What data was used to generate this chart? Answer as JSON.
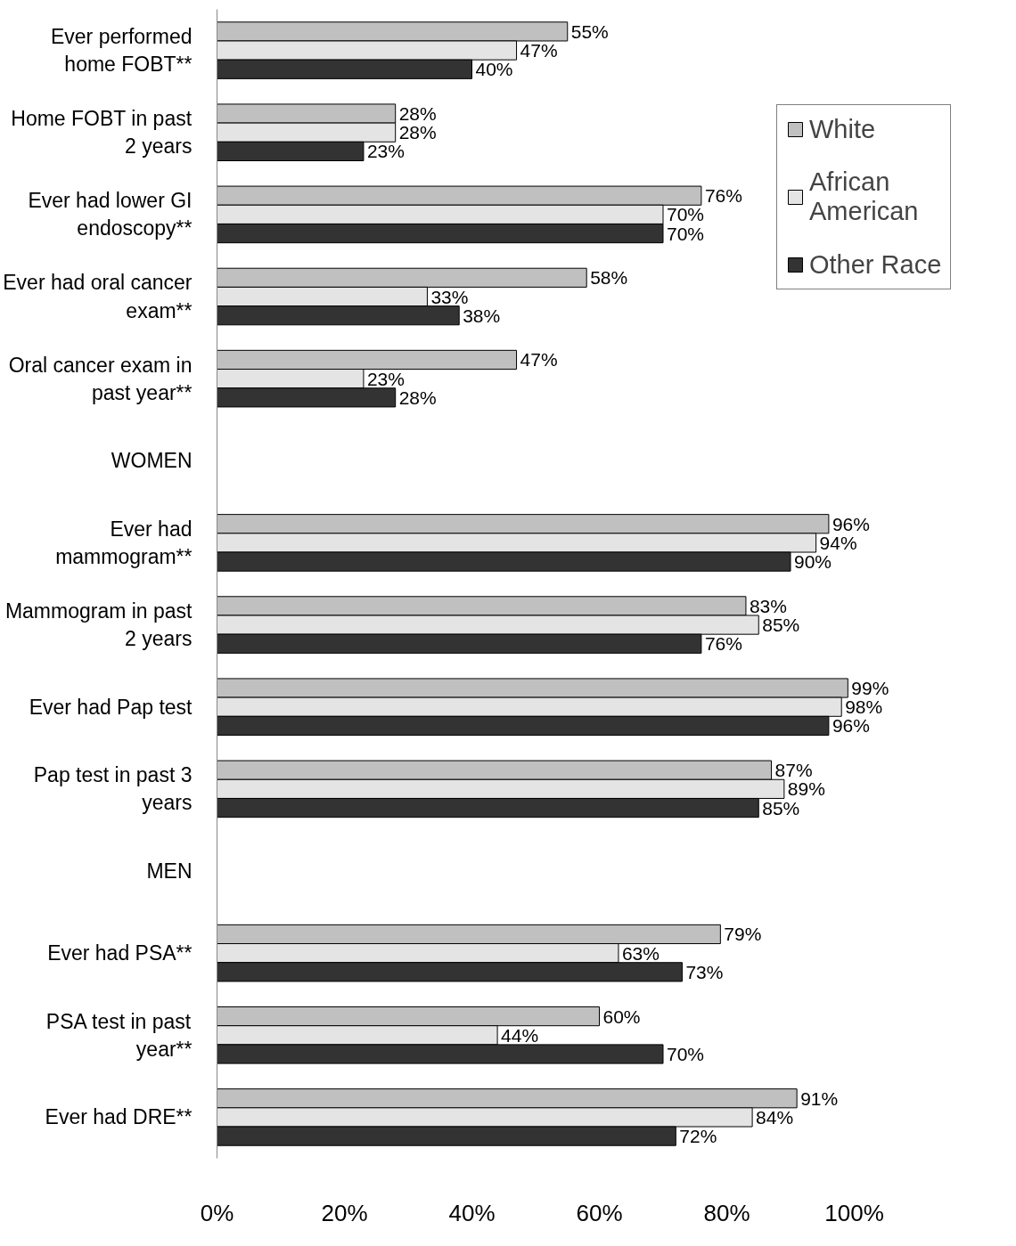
{
  "chart_data": {
    "type": "bar",
    "orientation": "horizontal",
    "categories": [
      "Ever performed\nhome FOBT**",
      "Home FOBT in past\n2 years",
      "Ever had lower GI\nendoscopy**",
      "Ever had oral cancer\nexam**",
      "Oral cancer exam in\npast year**",
      "WOMEN",
      "Ever had\nmammogram**",
      "Mammogram in past\n2 years",
      "Ever had Pap test",
      "Pap test in past 3\nyears",
      "MEN",
      "Ever had PSA**",
      "PSA test in past\nyear**",
      "Ever had DRE**"
    ],
    "series": [
      {
        "name": "White",
        "color": "#c0c0c0",
        "values": [
          55,
          28,
          76,
          58,
          47,
          null,
          96,
          83,
          99,
          87,
          null,
          79,
          60,
          91
        ],
        "value_labels": [
          "55%",
          "28%",
          "76%",
          "58%",
          "47%",
          null,
          "96%",
          "83%",
          "99%",
          "87%",
          null,
          "79%",
          "60%",
          "91%"
        ]
      },
      {
        "name": "African\nAmerican",
        "color": "#e4e4e4",
        "values": [
          47,
          28,
          70,
          33,
          23,
          null,
          94,
          85,
          98,
          89,
          null,
          63,
          44,
          84
        ],
        "value_labels": [
          "47%",
          "28%",
          "70%",
          "33%",
          "23%",
          null,
          "94%",
          "85%",
          "98%",
          "89%",
          null,
          "63%",
          "44%",
          "84%"
        ]
      },
      {
        "name": "Other Race",
        "color": "#333333",
        "values": [
          40,
          23,
          70,
          38,
          28,
          null,
          90,
          76,
          96,
          85,
          null,
          73,
          70,
          72
        ],
        "value_labels": [
          "40%",
          "23%",
          "70%",
          "38%",
          "28%",
          null,
          "90%",
          "76%",
          "96%",
          "85%",
          null,
          "73%",
          "70%",
          "72%"
        ]
      }
    ],
    "xlim": [
      0,
      100
    ],
    "xticks": [
      {
        "value": 0,
        "label": "0%"
      },
      {
        "value": 20,
        "label": "20%"
      },
      {
        "value": 40,
        "label": "40%"
      },
      {
        "value": 60,
        "label": "60%"
      },
      {
        "value": 80,
        "label": "80%"
      },
      {
        "value": 100,
        "label": "100%"
      }
    ],
    "grid": false,
    "legend": "right"
  }
}
